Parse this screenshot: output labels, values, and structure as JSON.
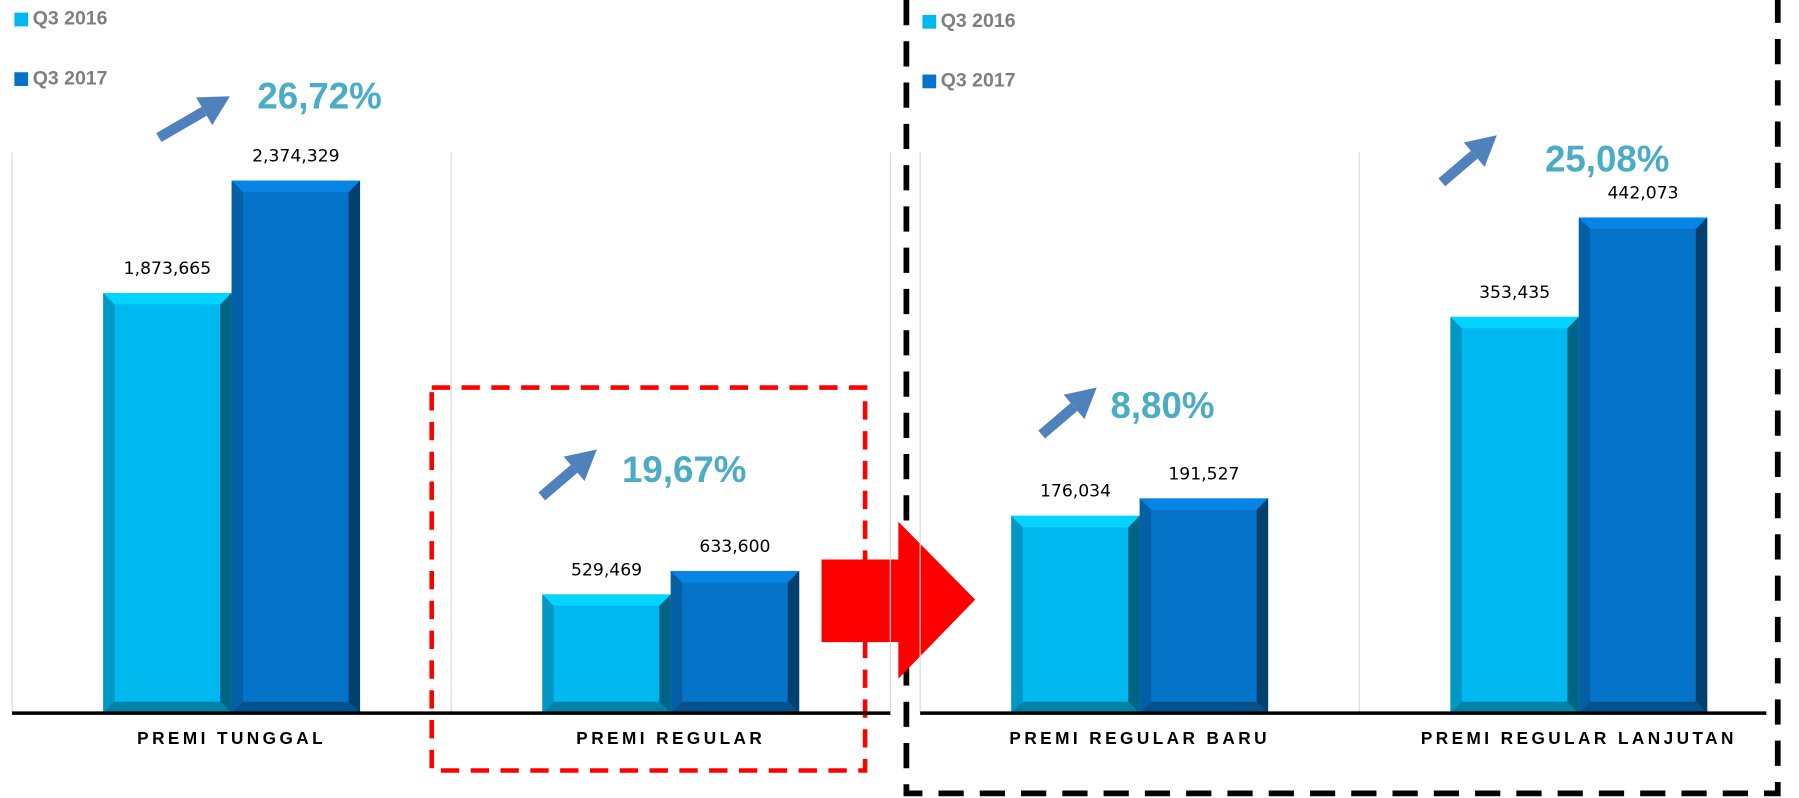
{
  "chart_data": [
    {
      "type": "bar",
      "categories": [
        "PREMI TUNGGAL",
        "PREMI REGULAR"
      ],
      "series": [
        {
          "name": "Q3 2016",
          "color": "#00b8f0",
          "values": [
            1873665,
            529469
          ],
          "value_labels": [
            "1,873,665",
            "529,469"
          ]
        },
        {
          "name": "Q3 2017",
          "color": "#0574c8",
          "values": [
            2374329,
            633600
          ],
          "value_labels": [
            "2,374,329",
            "633,600"
          ]
        }
      ],
      "ylim": [
        0,
        2500000
      ],
      "annotations": [
        "26,72%",
        "19,67%"
      ]
    },
    {
      "type": "bar",
      "categories": [
        "PREMI REGULAR BARU",
        "PREMI REGULAR LANJUTAN"
      ],
      "series": [
        {
          "name": "Q3 2016",
          "color": "#00b8f0",
          "values": [
            176034,
            353435
          ],
          "value_labels": [
            "176,034",
            "353,435"
          ]
        },
        {
          "name": "Q3 2017",
          "color": "#0574c8",
          "values": [
            191527,
            442073
          ],
          "value_labels": [
            "191,527",
            "442,073"
          ]
        }
      ],
      "ylim": [
        0,
        500000
      ],
      "annotations": [
        "8,80%",
        "25,08%"
      ]
    }
  ]
}
